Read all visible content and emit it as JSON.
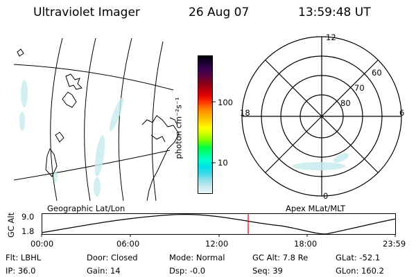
{
  "header": {
    "instrument": "Ultraviolet Imager",
    "date": "26 Aug 07",
    "time": "13:59:48 UT"
  },
  "colorbar": {
    "label": "photon cm⁻²s⁻¹",
    "ticks": [
      "100",
      "10"
    ],
    "colors": [
      "#000000",
      "#1a0033",
      "#3a0050",
      "#5a0040",
      "#800020",
      "#b00010",
      "#e00000",
      "#ff3000",
      "#ff7a00",
      "#ffaa00",
      "#ffd000",
      "#ffff00",
      "#c8ff00",
      "#70ff00",
      "#00ff40",
      "#00ff90",
      "#00ffd0",
      "#00e0e8",
      "#40d8e8",
      "#90e0e8",
      "#c8ecf0",
      "#e8f6f8"
    ]
  },
  "left_map": {
    "caption": "Geographic Lat/Lon"
  },
  "right_map": {
    "caption": "Apex MLat/MLT",
    "mlt_labels": {
      "top": "12",
      "left": "18",
      "right": "6",
      "bottom": "0"
    },
    "lat_labels": [
      "60",
      "70",
      "80"
    ]
  },
  "altitude_strip": {
    "axis_label": "GC Alt",
    "y_ticks": [
      "9.0",
      "1.8"
    ],
    "x_ticks": [
      "00:00",
      "06:00",
      "12:00",
      "18:00",
      "23:59"
    ]
  },
  "status": {
    "row1": [
      {
        "label": "Flt:",
        "value": "LBHL"
      },
      {
        "label": "Door:",
        "value": "Closed"
      },
      {
        "label": "Mode:",
        "value": "Normal"
      },
      {
        "label": "GC Alt:",
        "value": "7.8 Re"
      },
      {
        "label": "GLat:",
        "value": "-52.1"
      }
    ],
    "row2": [
      {
        "label": "IP:",
        "value": "36.0"
      },
      {
        "label": "Gain:",
        "value": "14"
      },
      {
        "label": "Dsp:",
        "value": "-0.0"
      },
      {
        "label": "Seq:",
        "value": "39"
      },
      {
        "label": "GLon:",
        "value": "160.2"
      }
    ]
  }
}
